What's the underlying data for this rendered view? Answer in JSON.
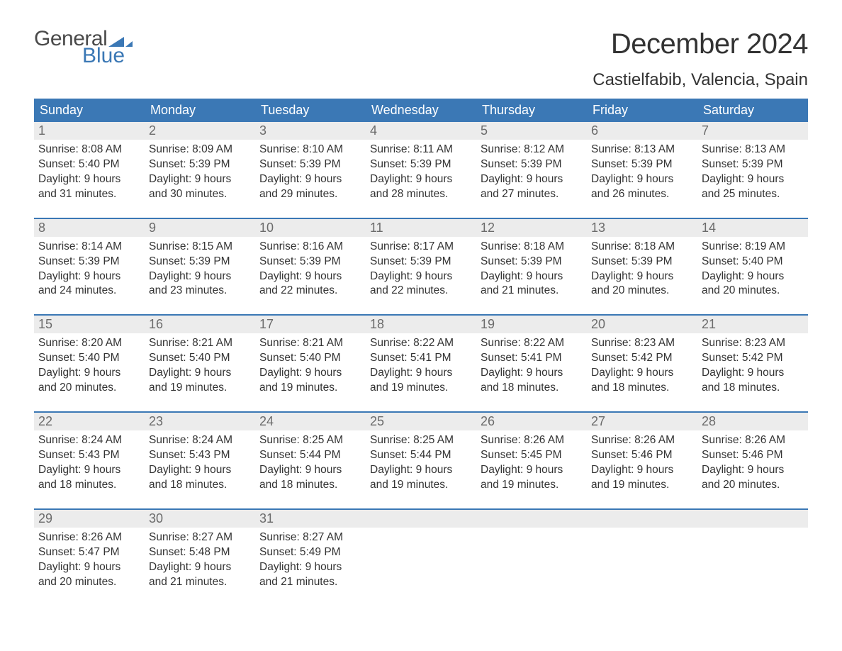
{
  "logo": {
    "word1": "General",
    "word2": "Blue",
    "word1_color": "#4a4a4a",
    "word2_color": "#3b78b5",
    "triangle_color": "#3b78b5"
  },
  "title": "December 2024",
  "location": "Castielfabib, Valencia, Spain",
  "colors": {
    "header_bg": "#3b78b5",
    "header_text": "#ffffff",
    "week_top_border": "#3b78b5",
    "daynum_bg": "#ececec",
    "daynum_text": "#6b6b6b",
    "body_text": "#333333",
    "page_bg": "#ffffff"
  },
  "typography": {
    "title_fontsize": 40,
    "location_fontsize": 24,
    "weekday_fontsize": 18,
    "daynum_fontsize": 18,
    "body_fontsize": 15.5,
    "font_family": "Arial"
  },
  "layout": {
    "columns": 7,
    "rows": 5
  },
  "weekdays": [
    "Sunday",
    "Monday",
    "Tuesday",
    "Wednesday",
    "Thursday",
    "Friday",
    "Saturday"
  ],
  "labels": {
    "sunrise": "Sunrise",
    "sunset": "Sunset",
    "daylight_prefix": "Daylight",
    "daylight_unit1": "hours",
    "daylight_unit2": "minutes."
  },
  "days": [
    {
      "n": 1,
      "sunrise": "8:08 AM",
      "sunset": "5:40 PM",
      "dl_h": 9,
      "dl_m": 31
    },
    {
      "n": 2,
      "sunrise": "8:09 AM",
      "sunset": "5:39 PM",
      "dl_h": 9,
      "dl_m": 30
    },
    {
      "n": 3,
      "sunrise": "8:10 AM",
      "sunset": "5:39 PM",
      "dl_h": 9,
      "dl_m": 29
    },
    {
      "n": 4,
      "sunrise": "8:11 AM",
      "sunset": "5:39 PM",
      "dl_h": 9,
      "dl_m": 28
    },
    {
      "n": 5,
      "sunrise": "8:12 AM",
      "sunset": "5:39 PM",
      "dl_h": 9,
      "dl_m": 27
    },
    {
      "n": 6,
      "sunrise": "8:13 AM",
      "sunset": "5:39 PM",
      "dl_h": 9,
      "dl_m": 26
    },
    {
      "n": 7,
      "sunrise": "8:13 AM",
      "sunset": "5:39 PM",
      "dl_h": 9,
      "dl_m": 25
    },
    {
      "n": 8,
      "sunrise": "8:14 AM",
      "sunset": "5:39 PM",
      "dl_h": 9,
      "dl_m": 24
    },
    {
      "n": 9,
      "sunrise": "8:15 AM",
      "sunset": "5:39 PM",
      "dl_h": 9,
      "dl_m": 23
    },
    {
      "n": 10,
      "sunrise": "8:16 AM",
      "sunset": "5:39 PM",
      "dl_h": 9,
      "dl_m": 22
    },
    {
      "n": 11,
      "sunrise": "8:17 AM",
      "sunset": "5:39 PM",
      "dl_h": 9,
      "dl_m": 22
    },
    {
      "n": 12,
      "sunrise": "8:18 AM",
      "sunset": "5:39 PM",
      "dl_h": 9,
      "dl_m": 21
    },
    {
      "n": 13,
      "sunrise": "8:18 AM",
      "sunset": "5:39 PM",
      "dl_h": 9,
      "dl_m": 20
    },
    {
      "n": 14,
      "sunrise": "8:19 AM",
      "sunset": "5:40 PM",
      "dl_h": 9,
      "dl_m": 20
    },
    {
      "n": 15,
      "sunrise": "8:20 AM",
      "sunset": "5:40 PM",
      "dl_h": 9,
      "dl_m": 20
    },
    {
      "n": 16,
      "sunrise": "8:21 AM",
      "sunset": "5:40 PM",
      "dl_h": 9,
      "dl_m": 19
    },
    {
      "n": 17,
      "sunrise": "8:21 AM",
      "sunset": "5:40 PM",
      "dl_h": 9,
      "dl_m": 19
    },
    {
      "n": 18,
      "sunrise": "8:22 AM",
      "sunset": "5:41 PM",
      "dl_h": 9,
      "dl_m": 19
    },
    {
      "n": 19,
      "sunrise": "8:22 AM",
      "sunset": "5:41 PM",
      "dl_h": 9,
      "dl_m": 18
    },
    {
      "n": 20,
      "sunrise": "8:23 AM",
      "sunset": "5:42 PM",
      "dl_h": 9,
      "dl_m": 18
    },
    {
      "n": 21,
      "sunrise": "8:23 AM",
      "sunset": "5:42 PM",
      "dl_h": 9,
      "dl_m": 18
    },
    {
      "n": 22,
      "sunrise": "8:24 AM",
      "sunset": "5:43 PM",
      "dl_h": 9,
      "dl_m": 18
    },
    {
      "n": 23,
      "sunrise": "8:24 AM",
      "sunset": "5:43 PM",
      "dl_h": 9,
      "dl_m": 18
    },
    {
      "n": 24,
      "sunrise": "8:25 AM",
      "sunset": "5:44 PM",
      "dl_h": 9,
      "dl_m": 18
    },
    {
      "n": 25,
      "sunrise": "8:25 AM",
      "sunset": "5:44 PM",
      "dl_h": 9,
      "dl_m": 19
    },
    {
      "n": 26,
      "sunrise": "8:26 AM",
      "sunset": "5:45 PM",
      "dl_h": 9,
      "dl_m": 19
    },
    {
      "n": 27,
      "sunrise": "8:26 AM",
      "sunset": "5:46 PM",
      "dl_h": 9,
      "dl_m": 19
    },
    {
      "n": 28,
      "sunrise": "8:26 AM",
      "sunset": "5:46 PM",
      "dl_h": 9,
      "dl_m": 20
    },
    {
      "n": 29,
      "sunrise": "8:26 AM",
      "sunset": "5:47 PM",
      "dl_h": 9,
      "dl_m": 20
    },
    {
      "n": 30,
      "sunrise": "8:27 AM",
      "sunset": "5:48 PM",
      "dl_h": 9,
      "dl_m": 21
    },
    {
      "n": 31,
      "sunrise": "8:27 AM",
      "sunset": "5:49 PM",
      "dl_h": 9,
      "dl_m": 21
    }
  ],
  "start_weekday_index": 0
}
